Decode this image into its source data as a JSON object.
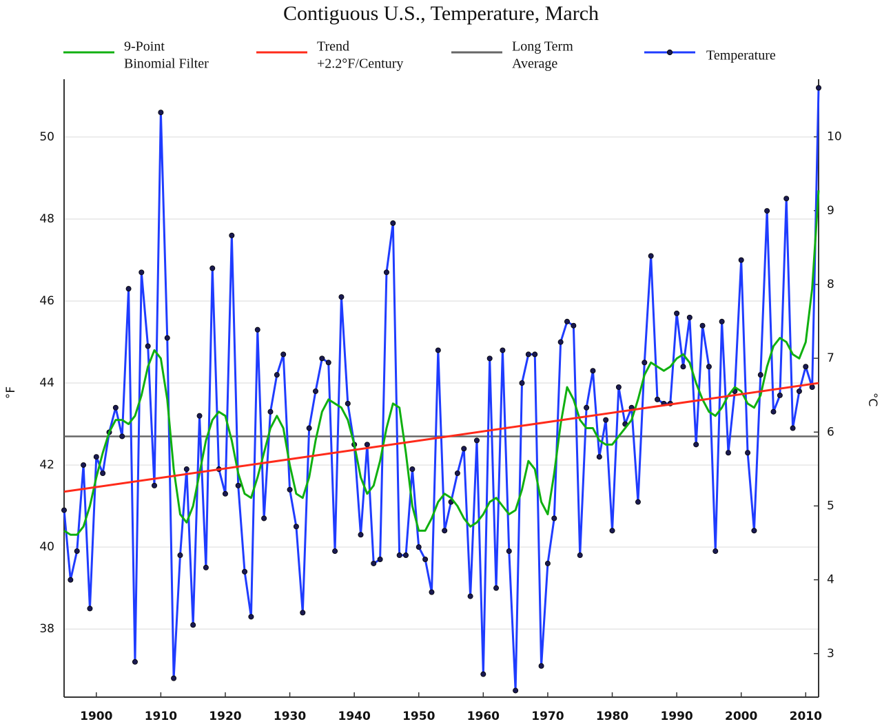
{
  "chart_data": {
    "type": "line",
    "title": "Contiguous U.S., Temperature, March",
    "y_label": "°F",
    "y2_label": "°C",
    "x": [
      1895,
      1896,
      1897,
      1898,
      1899,
      1900,
      1901,
      1902,
      1903,
      1904,
      1905,
      1906,
      1907,
      1908,
      1909,
      1910,
      1911,
      1912,
      1913,
      1914,
      1915,
      1916,
      1917,
      1918,
      1919,
      1920,
      1921,
      1922,
      1923,
      1924,
      1925,
      1926,
      1927,
      1928,
      1929,
      1930,
      1931,
      1932,
      1933,
      1934,
      1935,
      1936,
      1937,
      1938,
      1939,
      1940,
      1941,
      1942,
      1943,
      1944,
      1945,
      1946,
      1947,
      1948,
      1949,
      1950,
      1951,
      1952,
      1953,
      1954,
      1955,
      1956,
      1957,
      1958,
      1959,
      1960,
      1961,
      1962,
      1963,
      1964,
      1965,
      1966,
      1967,
      1968,
      1969,
      1970,
      1971,
      1972,
      1973,
      1974,
      1975,
      1976,
      1977,
      1978,
      1979,
      1980,
      1981,
      1982,
      1983,
      1984,
      1985,
      1986,
      1987,
      1988,
      1989,
      1990,
      1991,
      1992,
      1993,
      1994,
      1995,
      1996,
      1997,
      1998,
      1999,
      2000,
      2001,
      2002,
      2003,
      2004,
      2005,
      2006,
      2007,
      2008,
      2009,
      2010,
      2011,
      2012
    ],
    "series": [
      {
        "name": [
          "9-Point",
          "Binomial Filter"
        ],
        "color": "#10b010",
        "values": [
          40.4,
          40.3,
          40.3,
          40.5,
          41.0,
          41.7,
          42.3,
          42.8,
          43.1,
          43.1,
          43.0,
          43.2,
          43.7,
          44.4,
          44.8,
          44.6,
          43.6,
          41.9,
          40.8,
          40.6,
          41.0,
          41.8,
          42.6,
          43.1,
          43.3,
          43.2,
          42.6,
          41.8,
          41.3,
          41.2,
          41.7,
          42.3,
          42.9,
          43.2,
          42.9,
          42.0,
          41.3,
          41.2,
          41.7,
          42.6,
          43.3,
          43.6,
          43.5,
          43.4,
          43.1,
          42.5,
          41.7,
          41.3,
          41.5,
          42.1,
          42.9,
          43.5,
          43.4,
          42.3,
          41.0,
          40.4,
          40.4,
          40.7,
          41.1,
          41.3,
          41.2,
          41.0,
          40.7,
          40.5,
          40.6,
          40.8,
          41.1,
          41.2,
          41.0,
          40.8,
          40.9,
          41.4,
          42.1,
          41.9,
          41.1,
          40.8,
          41.8,
          43.0,
          43.9,
          43.6,
          43.1,
          42.9,
          42.9,
          42.6,
          42.5,
          42.5,
          42.7,
          42.9,
          43.1,
          43.6,
          44.2,
          44.5,
          44.4,
          44.3,
          44.4,
          44.6,
          44.7,
          44.5,
          44.0,
          43.6,
          43.3,
          43.2,
          43.4,
          43.7,
          43.9,
          43.8,
          43.5,
          43.4,
          43.7,
          44.4,
          44.9,
          45.1,
          45.0,
          44.7,
          44.6,
          45.0,
          46.3,
          48.7
        ]
      },
      {
        "name": [
          "Trend",
          "+2.2°F/Century"
        ],
        "color": "#ff2a1a",
        "x": [
          1895,
          2012
        ],
        "values": [
          41.35,
          44.0
        ]
      },
      {
        "name": [
          "Long Term",
          "Average"
        ],
        "color": "#666666",
        "level": 42.7
      },
      {
        "name": [
          "Temperature"
        ],
        "color": "#1f3cff",
        "markers": true,
        "values": [
          40.9,
          39.2,
          39.9,
          42.0,
          38.5,
          42.2,
          41.8,
          42.8,
          43.4,
          42.7,
          46.3,
          37.2,
          46.7,
          44.9,
          41.5,
          50.6,
          45.1,
          36.8,
          39.8,
          41.9,
          38.1,
          43.2,
          39.5,
          46.8,
          41.9,
          41.3,
          47.6,
          41.5,
          39.4,
          38.3,
          45.3,
          40.7,
          43.3,
          44.2,
          44.7,
          41.4,
          40.5,
          38.4,
          42.9,
          43.8,
          44.6,
          44.5,
          39.9,
          46.1,
          43.5,
          42.5,
          40.3,
          42.5,
          39.6,
          39.7,
          46.7,
          47.9,
          39.8,
          39.8,
          41.9,
          40.0,
          39.7,
          38.9,
          44.8,
          40.4,
          41.1,
          41.8,
          42.4,
          38.8,
          42.6,
          36.9,
          44.6,
          39.0,
          44.8,
          39.9,
          36.5,
          44.0,
          44.7,
          44.7,
          37.1,
          39.6,
          40.7,
          45.0,
          45.5,
          45.4,
          39.8,
          43.4,
          44.3,
          42.2,
          43.1,
          40.4,
          43.9,
          43.0,
          43.4,
          41.1,
          44.5,
          47.1,
          43.6,
          43.5,
          43.5,
          45.7,
          44.4,
          45.6,
          42.5,
          45.4,
          44.4,
          39.9,
          45.5,
          42.3,
          43.8,
          47.0,
          42.3,
          40.4,
          44.2,
          48.2,
          43.3,
          43.7,
          48.5,
          42.9,
          43.8,
          44.4,
          43.9,
          51.2
        ]
      }
    ],
    "xlim": [
      1895,
      2012
    ],
    "xticks": [
      1900,
      1910,
      1920,
      1930,
      1940,
      1950,
      1960,
      1970,
      1980,
      1990,
      2000,
      2010
    ],
    "ylim": [
      36.34,
      51.41
    ],
    "yticks": [
      38,
      40,
      42,
      44,
      46,
      48,
      50
    ],
    "y2lim": [
      2.41,
      10.78
    ],
    "y2ticks": [
      3,
      4,
      5,
      6,
      7,
      8,
      9,
      10
    ],
    "grid": true
  }
}
